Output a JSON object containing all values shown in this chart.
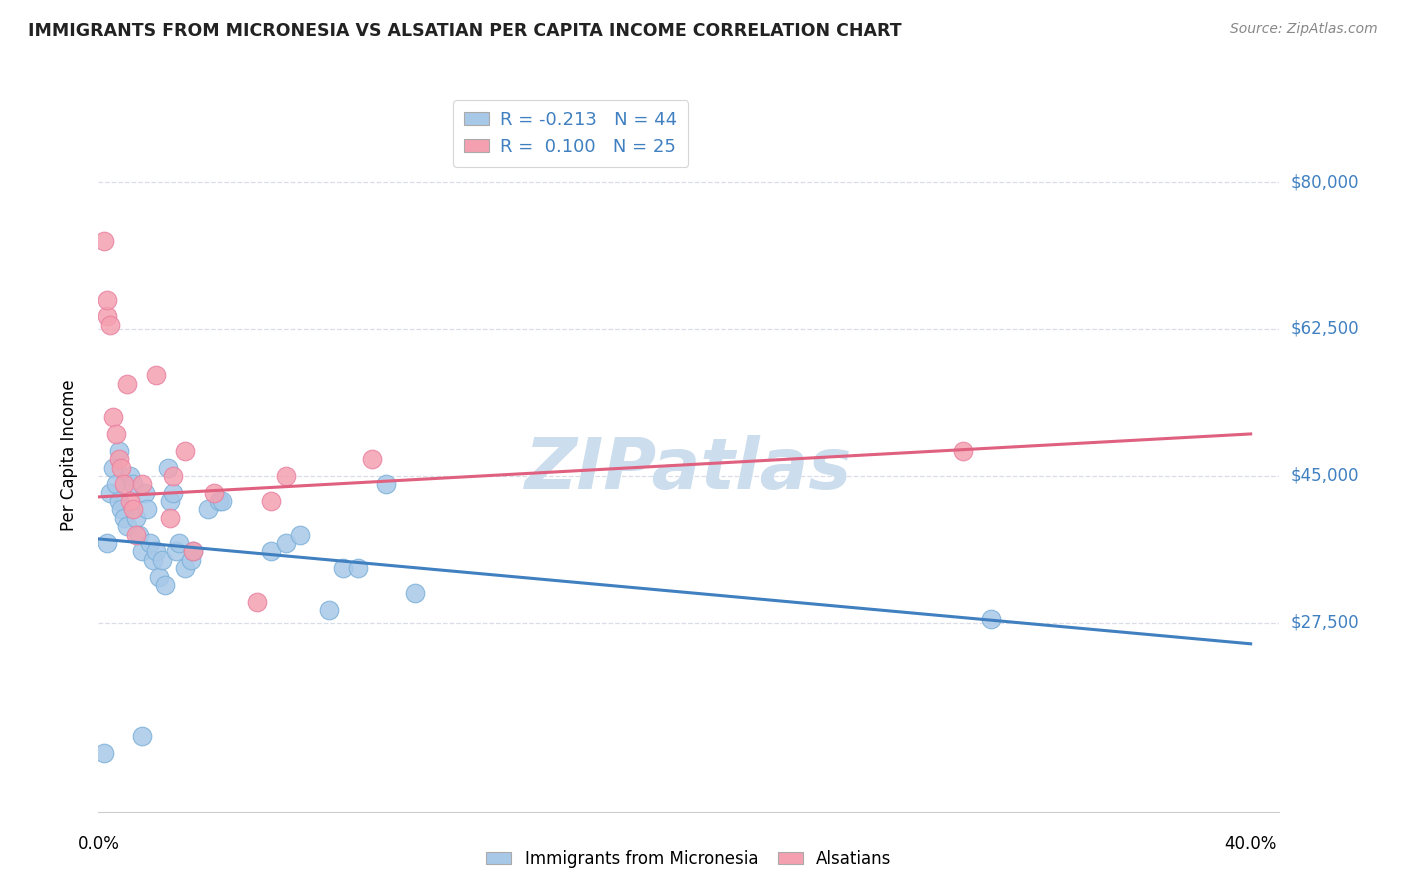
{
  "title": "IMMIGRANTS FROM MICRONESIA VS ALSATIAN PER CAPITA INCOME CORRELATION CHART",
  "source": "Source: ZipAtlas.com",
  "ylabel": "Per Capita Income",
  "ytick_labels": [
    "$27,500",
    "$45,000",
    "$62,500",
    "$80,000"
  ],
  "ytick_values": [
    27500,
    45000,
    62500,
    80000
  ],
  "ylim": [
    5000,
    90000
  ],
  "xlim": [
    0.0,
    0.41
  ],
  "xtick_positions": [
    0.0,
    0.1,
    0.2,
    0.3,
    0.4
  ],
  "xtick_labels_show": [
    "0.0%",
    "",
    "",
    "",
    "40.0%"
  ],
  "legend_r_blue": "R = -0.213",
  "legend_n_blue": "N = 44",
  "legend_r_pink": "R =  0.100",
  "legend_n_pink": "N = 25",
  "blue_scatter_color": "#a8c8e8",
  "pink_scatter_color": "#f4a0b0",
  "blue_scatter_edge": "#7ab0d8",
  "pink_scatter_edge": "#e880a0",
  "line_blue_color": "#4080c0",
  "line_pink_color": "#e06080",
  "watermark_color": "#ccdded",
  "title_color": "#222222",
  "source_color": "#888888",
  "axis_label_color": "#4080c0",
  "grid_color": "#d8dde8",
  "spine_color": "#cccccc",
  "blue_points_x": [
    0.002,
    0.003,
    0.004,
    0.005,
    0.006,
    0.007,
    0.007,
    0.008,
    0.009,
    0.01,
    0.011,
    0.012,
    0.013,
    0.014,
    0.015,
    0.016,
    0.017,
    0.018,
    0.019,
    0.02,
    0.021,
    0.022,
    0.023,
    0.024,
    0.025,
    0.026,
    0.027,
    0.028,
    0.03,
    0.032,
    0.033,
    0.038,
    0.042,
    0.043,
    0.06,
    0.065,
    0.07,
    0.08,
    0.085,
    0.09,
    0.1,
    0.11,
    0.31,
    0.015
  ],
  "blue_points_y": [
    12000,
    37000,
    43000,
    46000,
    44000,
    42000,
    48000,
    41000,
    40000,
    39000,
    45000,
    44000,
    40000,
    38000,
    36000,
    43000,
    41000,
    37000,
    35000,
    36000,
    33000,
    35000,
    32000,
    46000,
    42000,
    43000,
    36000,
    37000,
    34000,
    35000,
    36000,
    41000,
    42000,
    42000,
    36000,
    37000,
    38000,
    29000,
    34000,
    34000,
    44000,
    31000,
    28000,
    14000
  ],
  "pink_points_x": [
    0.002,
    0.003,
    0.004,
    0.005,
    0.006,
    0.007,
    0.008,
    0.009,
    0.01,
    0.011,
    0.012,
    0.013,
    0.015,
    0.02,
    0.025,
    0.026,
    0.03,
    0.033,
    0.04,
    0.055,
    0.06,
    0.065,
    0.095,
    0.3,
    0.003
  ],
  "pink_points_y": [
    73000,
    64000,
    63000,
    52000,
    50000,
    47000,
    46000,
    44000,
    56000,
    42000,
    41000,
    38000,
    44000,
    57000,
    40000,
    45000,
    48000,
    36000,
    43000,
    30000,
    42000,
    45000,
    47000,
    48000,
    66000
  ],
  "blue_line_x": [
    0.0,
    0.4
  ],
  "blue_line_y": [
    37500,
    25000
  ],
  "pink_line_x": [
    0.0,
    0.4
  ],
  "pink_line_y": [
    42500,
    50000
  ],
  "scatter_size": 180
}
